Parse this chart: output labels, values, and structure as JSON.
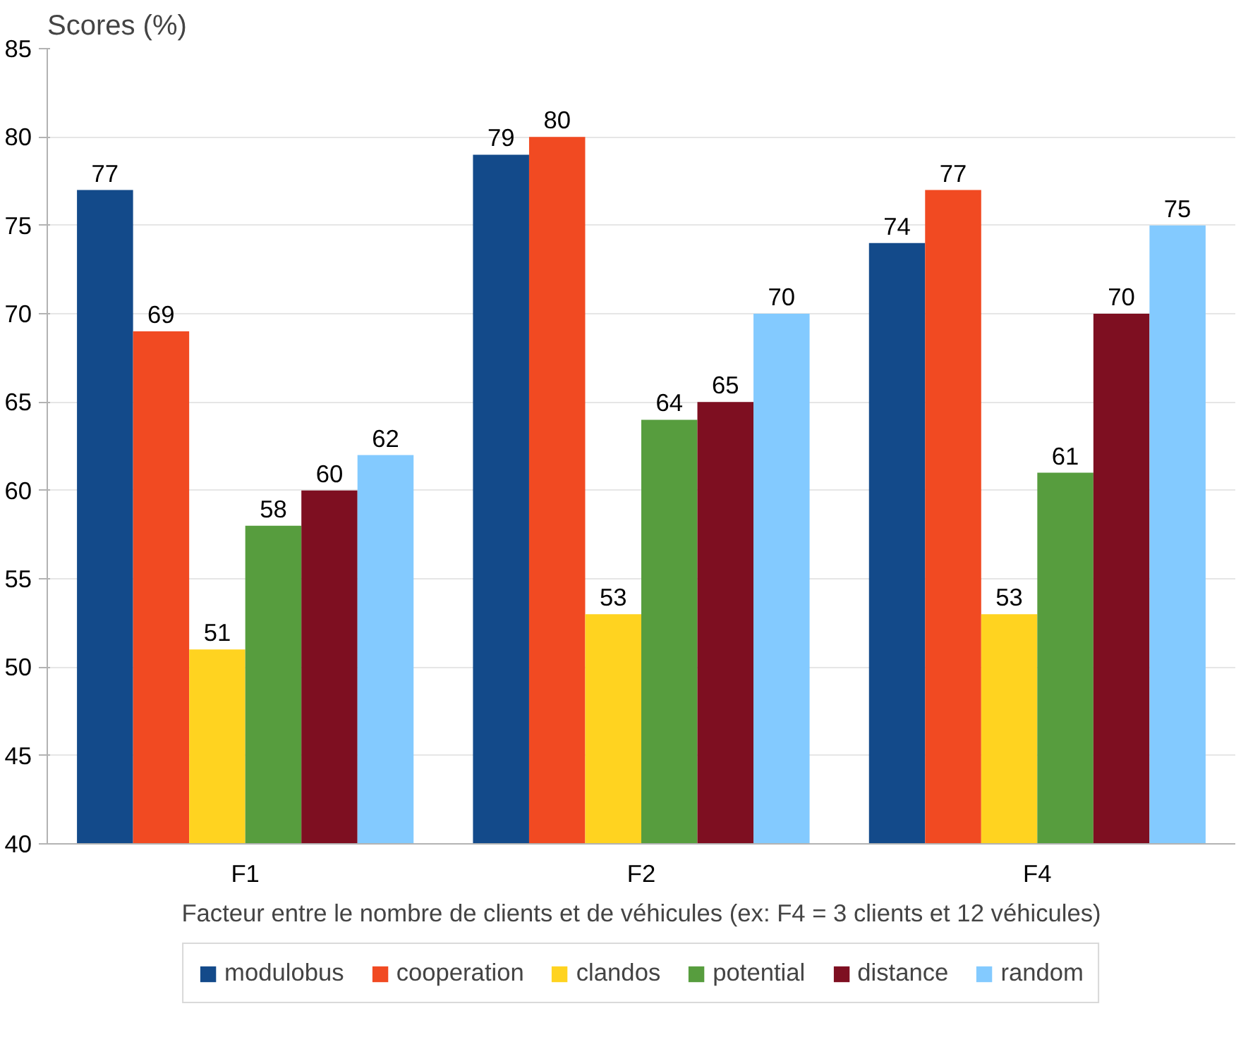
{
  "chart_data": {
    "type": "bar",
    "ylabel": "Scores (%)",
    "xlabel": "Facteur entre le nombre de clients et de véhicules (ex: F4 = 3 clients et 12 véhicules)",
    "categories": [
      "F1",
      "F2",
      "F4"
    ],
    "series": [
      {
        "name": "modulobus",
        "color": "#134a8a",
        "values": [
          77,
          79,
          74
        ]
      },
      {
        "name": "cooperation",
        "color": "#f14a22",
        "values": [
          69,
          80,
          77
        ]
      },
      {
        "name": "clandos",
        "color": "#ffd320",
        "values": [
          51,
          53,
          53
        ]
      },
      {
        "name": "potential",
        "color": "#579d3e",
        "values": [
          58,
          64,
          61
        ]
      },
      {
        "name": "distance",
        "color": "#7e0f21",
        "values": [
          60,
          65,
          70
        ]
      },
      {
        "name": "random",
        "color": "#83caff",
        "values": [
          62,
          70,
          75
        ]
      }
    ],
    "ylim": [
      40,
      85
    ],
    "yticks": [
      40,
      45,
      50,
      55,
      60,
      65,
      70,
      75,
      80,
      85
    ],
    "grid": "y",
    "legend": "bottom",
    "data_labels": true
  }
}
